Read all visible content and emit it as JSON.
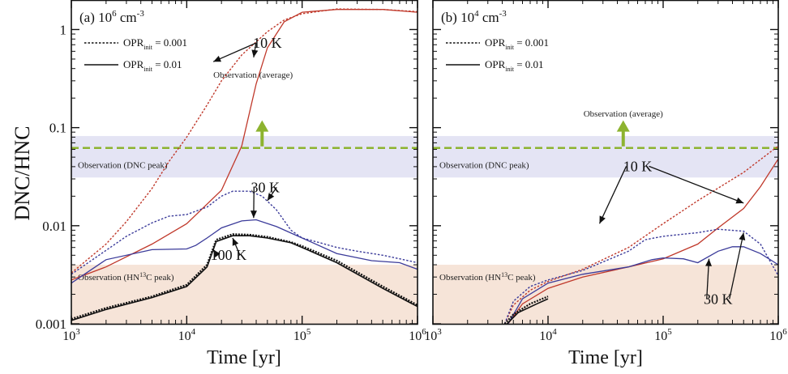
{
  "figure": {
    "ylabel": "DNC/HNC",
    "xlabel": "Time [yr]"
  },
  "colors": {
    "red": "#c0392b",
    "blue": "#3b3b9a",
    "black": "#111111",
    "obs_green": "#8db32f",
    "dnc_band": "#e4e4f4",
    "hn13c_band": "#f6e4d8"
  },
  "chart_data": [
    {
      "type": "line",
      "panel_label": "(a)",
      "density_label": "10",
      "density_exp": "6",
      "density_unit": "cm",
      "density_unit_exp": "-3",
      "xscale": "log",
      "yscale": "log",
      "xlim": [
        1000,
        1000000
      ],
      "ylim": [
        0.001,
        2
      ],
      "x_ticks": [
        {
          "base": "10",
          "exp": "3",
          "v": 1000
        },
        {
          "base": "10",
          "exp": "4",
          "v": 10000
        },
        {
          "base": "10",
          "exp": "5",
          "v": 100000
        },
        {
          "base": "10",
          "exp": "6",
          "v": 1000000
        }
      ],
      "y_ticks": [
        {
          "label": "0.001",
          "v": 0.001
        },
        {
          "label": "0.01",
          "v": 0.01
        },
        {
          "label": "0.1",
          "v": 0.1
        },
        {
          "label": "1",
          "v": 1
        }
      ],
      "legend": [
        {
          "base": "OPR",
          "sub": "init",
          "value": " = 0.001",
          "style": "dotted"
        },
        {
          "base": "OPR",
          "sub": "init",
          "value": " = 0.01",
          "style": "solid"
        }
      ],
      "bands": [
        {
          "name": "Observation (DNC peak)",
          "range": [
            0.031,
            0.082
          ],
          "color": "dnc_band"
        },
        {
          "name": "Observation (HN13C peak)",
          "label_pre": "Observation (HN",
          "label_sup": "13",
          "label_post": "C peak)",
          "range": [
            0.001,
            0.004
          ],
          "color": "hn13c_band"
        }
      ],
      "obs_line": {
        "label": "Observation (average)",
        "value": 0.062,
        "arrow_x": 45000,
        "arrow_to": 0.11
      },
      "series": [
        {
          "temp": "10 K",
          "opr": "0.001",
          "style": "dotted",
          "color": "red",
          "x": [
            1000,
            2000,
            3000,
            5000,
            7000,
            10000,
            15000,
            20000,
            30000,
            50000,
            70000,
            100000,
            200000,
            500000,
            1000000
          ],
          "y": [
            0.0033,
            0.0065,
            0.011,
            0.024,
            0.045,
            0.08,
            0.17,
            0.3,
            0.55,
            0.95,
            1.25,
            1.45,
            1.62,
            1.6,
            1.52
          ]
        },
        {
          "temp": "10 K",
          "opr": "0.01",
          "style": "solid",
          "color": "red",
          "x": [
            1000,
            2000,
            5000,
            10000,
            20000,
            30000,
            40000,
            50000,
            70000,
            100000,
            200000,
            500000,
            1000000
          ],
          "y": [
            0.0028,
            0.0038,
            0.0065,
            0.0105,
            0.023,
            0.065,
            0.28,
            0.65,
            1.2,
            1.5,
            1.6,
            1.6,
            1.5
          ]
        },
        {
          "temp": "30 K",
          "opr": "0.001",
          "style": "dotted",
          "color": "blue",
          "x": [
            1000,
            2000,
            3000,
            5000,
            7000,
            10000,
            15000,
            20000,
            25000,
            35000,
            45000,
            60000,
            80000,
            100000,
            150000,
            200000,
            300000,
            500000,
            700000,
            1000000
          ],
          "y": [
            0.0032,
            0.0056,
            0.0078,
            0.0107,
            0.0125,
            0.013,
            0.0155,
            0.02,
            0.0225,
            0.0225,
            0.02,
            0.0145,
            0.009,
            0.0075,
            0.0066,
            0.006,
            0.0055,
            0.005,
            0.0046,
            0.0042
          ]
        },
        {
          "temp": "30 K",
          "opr": "0.01",
          "style": "solid",
          "color": "blue",
          "x": [
            1000,
            2000,
            5000,
            10000,
            12000,
            15000,
            20000,
            30000,
            40000,
            60000,
            100000,
            200000,
            400000,
            700000,
            1000000
          ],
          "y": [
            0.0026,
            0.0045,
            0.0057,
            0.0058,
            0.0063,
            0.0075,
            0.0095,
            0.0112,
            0.0115,
            0.0098,
            0.0075,
            0.0052,
            0.0044,
            0.0042,
            0.0036
          ]
        },
        {
          "temp": "100 K",
          "opr": "0.001",
          "style": "dotted",
          "color": "black",
          "x": [
            1000,
            2000,
            5000,
            10000,
            15000,
            18000,
            25000,
            35000,
            50000,
            80000,
            100000,
            200000,
            500000,
            1000000
          ],
          "y": [
            0.00112,
            0.00145,
            0.0019,
            0.0025,
            0.004,
            0.0072,
            0.0082,
            0.0081,
            0.0077,
            0.0068,
            0.0062,
            0.0044,
            0.0024,
            0.00155
          ]
        },
        {
          "temp": "100 K",
          "opr": "0.01",
          "style": "solid",
          "color": "black",
          "x": [
            1000,
            2000,
            5000,
            10000,
            15000,
            18000,
            25000,
            35000,
            50000,
            80000,
            100000,
            200000,
            500000,
            1000000
          ],
          "y": [
            0.00108,
            0.0014,
            0.00185,
            0.0024,
            0.0038,
            0.0069,
            0.0079,
            0.0079,
            0.0075,
            0.0067,
            0.006,
            0.0042,
            0.0023,
            0.0015
          ]
        }
      ],
      "annotations": [
        {
          "text": "10 K",
          "x": 50000,
          "y": 0.65,
          "targets": [
            [
              17000,
              0.47
            ],
            [
              38000,
              0.52
            ]
          ]
        },
        {
          "text": "30 K",
          "x": 48000,
          "y": 0.022,
          "targets": [
            [
              50000,
              0.018
            ],
            [
              38000,
              0.012
            ]
          ]
        },
        {
          "text": "100 K",
          "x": 23000,
          "y": 0.0045,
          "targets": [
            [
              17000,
              0.0057
            ],
            [
              25000,
              0.0075
            ]
          ]
        }
      ]
    },
    {
      "type": "line",
      "panel_label": "(b)",
      "density_label": "10",
      "density_exp": "4",
      "density_unit": "cm",
      "density_unit_exp": "-3",
      "xscale": "log",
      "yscale": "log",
      "xlim": [
        1000,
        1000000
      ],
      "ylim": [
        0.001,
        2
      ],
      "x_ticks": [
        {
          "base": "10",
          "exp": "3",
          "v": 1000
        },
        {
          "base": "10",
          "exp": "4",
          "v": 10000
        },
        {
          "base": "10",
          "exp": "5",
          "v": 100000
        },
        {
          "base": "10",
          "exp": "6",
          "v": 1000000
        }
      ],
      "legend": [
        {
          "base": "OPR",
          "sub": "init",
          "value": " = 0.001",
          "style": "dotted"
        },
        {
          "base": "OPR",
          "sub": "init",
          "value": " = 0.01",
          "style": "solid"
        }
      ],
      "bands": [
        {
          "name": "Observation (DNC peak)",
          "range": [
            0.031,
            0.082
          ],
          "color": "dnc_band"
        },
        {
          "name": "Observation (HN13C peak)",
          "label_pre": "Observation (HN",
          "label_sup": "13",
          "label_post": "C peak)",
          "range": [
            0.001,
            0.004
          ],
          "color": "hn13c_band"
        }
      ],
      "obs_line": {
        "label": "Observation (average)",
        "value": 0.062,
        "arrow_x": 45000,
        "arrow_to": 0.11
      },
      "series": [
        {
          "temp": "10 K",
          "opr": "0.001",
          "style": "dotted",
          "color": "red",
          "x": [
            4200,
            5000,
            7000,
            10000,
            20000,
            50000,
            100000,
            200000,
            500000,
            1000000
          ],
          "y": [
            0.001,
            0.00155,
            0.0022,
            0.0027,
            0.0036,
            0.006,
            0.0105,
            0.018,
            0.035,
            0.065
          ]
        },
        {
          "temp": "10 K",
          "opr": "0.01",
          "style": "solid",
          "color": "red",
          "x": [
            4500,
            6000,
            10000,
            20000,
            50000,
            100000,
            200000,
            300000,
            500000,
            700000,
            1000000
          ],
          "y": [
            0.001,
            0.0016,
            0.0023,
            0.003,
            0.0038,
            0.0046,
            0.0065,
            0.0095,
            0.015,
            0.025,
            0.048
          ]
        },
        {
          "temp": "30 K",
          "opr": "0.001",
          "style": "dotted",
          "color": "blue",
          "x": [
            4200,
            5000,
            7000,
            10000,
            20000,
            50000,
            70000,
            100000,
            200000,
            300000,
            500000,
            700000,
            1000000
          ],
          "y": [
            0.001,
            0.0017,
            0.0024,
            0.0028,
            0.0035,
            0.0055,
            0.0072,
            0.0078,
            0.0085,
            0.0092,
            0.0088,
            0.0065,
            0.0031
          ]
        },
        {
          "temp": "30 K",
          "opr": "0.01",
          "style": "solid",
          "color": "blue",
          "x": [
            4500,
            6000,
            10000,
            20000,
            50000,
            80000,
            100000,
            150000,
            200000,
            300000,
            400000,
            500000,
            700000,
            1000000
          ],
          "y": [
            0.001,
            0.0018,
            0.0026,
            0.0032,
            0.0038,
            0.0045,
            0.0047,
            0.0046,
            0.0042,
            0.0055,
            0.0061,
            0.0061,
            0.0052,
            0.004
          ]
        },
        {
          "temp": "100 K",
          "opr": "0.001",
          "style": "dotted",
          "color": "black",
          "x": [
            4200,
            5000,
            7000,
            10000
          ],
          "y": [
            0.001,
            0.00125,
            0.0016,
            0.0019
          ]
        },
        {
          "temp": "100 K",
          "opr": "0.01",
          "style": "solid",
          "color": "black",
          "x": [
            4400,
            5500,
            8000,
            10000
          ],
          "y": [
            0.001,
            0.0013,
            0.0016,
            0.0018
          ]
        }
      ],
      "annotations": [
        {
          "text": "10 K",
          "x": 60000,
          "y": 0.036,
          "targets": [
            [
              28000,
              0.0105
            ],
            [
              500000,
              0.017
            ]
          ]
        },
        {
          "text": "30 K",
          "x": 300000,
          "y": 0.0016,
          "targets": [
            [
              250000,
              0.0046
            ],
            [
              500000,
              0.0085
            ]
          ]
        }
      ]
    }
  ]
}
